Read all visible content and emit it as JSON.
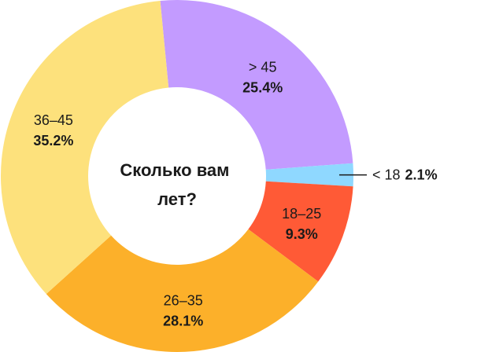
{
  "chart_data": {
    "type": "pie",
    "title": "Сколько вам лет?",
    "title_lines": [
      "Сколько вам",
      "лет?"
    ],
    "slices": [
      {
        "label": "> 45",
        "value": 25.4,
        "value_text": "25.4%",
        "color": "#c39bff"
      },
      {
        "label": "< 18",
        "value": 2.1,
        "value_text": "2.1%",
        "color": "#8fd8ff",
        "external": true
      },
      {
        "label": "18–25",
        "value": 9.3,
        "value_text": "9.3%",
        "color": "#ff5a36"
      },
      {
        "label": "26–35",
        "value": 28.1,
        "value_text": "28.1%",
        "color": "#fcb02a"
      },
      {
        "label": "36–45",
        "value": 35.2,
        "value_text": "35.2%",
        "color": "#fde17c"
      }
    ]
  }
}
